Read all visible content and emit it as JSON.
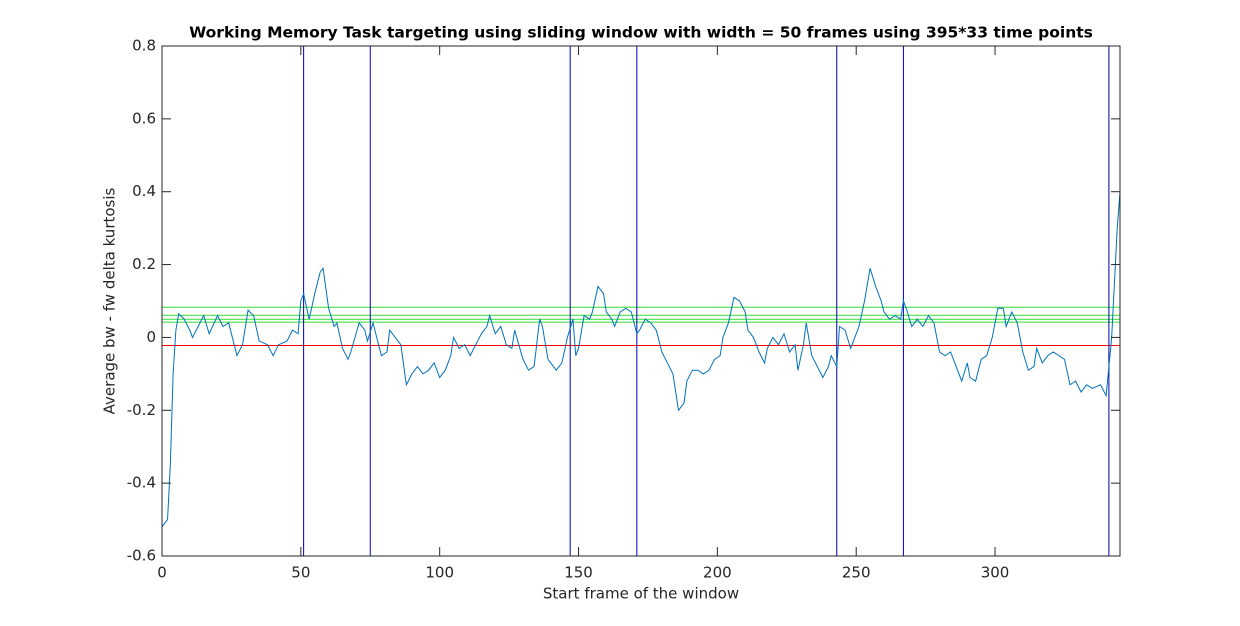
{
  "chart_data": {
    "type": "line",
    "title": "Working Memory Task targeting using sliding window with width = 50 frames using 395*33 time points",
    "xlabel": "Start frame of the window",
    "ylabel": "Average bw - fw delta kurtosis",
    "xlim": [
      0,
      345
    ],
    "ylim": [
      -0.6,
      0.8
    ],
    "xticks": [
      0,
      50,
      100,
      150,
      200,
      250,
      300
    ],
    "yticks": [
      -0.6,
      -0.4,
      -0.2,
      0,
      0.2,
      0.4,
      0.6,
      0.8
    ],
    "series": [
      {
        "color": "#0072bd",
        "x": [
          0,
          2,
          3,
          4,
          5,
          6,
          8,
          10,
          11,
          13,
          15,
          17,
          20,
          22,
          24,
          27,
          29,
          31,
          33,
          35,
          38,
          40,
          42,
          45,
          47,
          49,
          50,
          51,
          53,
          55,
          57,
          58,
          60,
          62,
          63,
          65,
          67,
          68,
          71,
          73,
          74,
          76,
          77,
          79,
          81,
          82,
          84,
          86,
          88,
          90,
          92,
          94,
          96,
          98,
          100,
          102,
          104,
          105,
          107,
          109,
          111,
          113,
          115,
          117,
          118,
          120,
          122,
          124,
          126,
          127,
          130,
          132,
          134,
          136,
          137,
          139,
          142,
          144,
          146,
          148,
          149,
          150,
          152,
          154,
          155,
          157,
          159,
          160,
          162,
          163,
          165,
          167,
          169,
          171,
          172,
          174,
          176,
          178,
          180,
          182,
          184,
          186,
          188,
          189,
          191,
          193,
          195,
          197,
          199,
          201,
          202,
          204,
          206,
          208,
          210,
          211,
          213,
          215,
          217,
          218,
          220,
          222,
          224,
          226,
          228,
          229,
          231,
          232,
          234,
          236,
          238,
          240,
          241,
          243,
          244,
          246,
          248,
          250,
          251,
          253,
          255,
          257,
          259,
          260,
          262,
          264,
          266,
          267,
          268,
          270,
          272,
          274,
          276,
          278,
          280,
          282,
          284,
          286,
          288,
          290,
          291,
          293,
          295,
          297,
          299,
          301,
          303,
          304,
          306,
          308,
          310,
          312,
          314,
          315,
          317,
          319,
          321,
          323,
          325,
          327,
          329,
          331,
          333,
          335,
          338,
          340,
          342,
          343,
          344,
          345
        ],
        "values": [
          -0.52,
          -0.5,
          -0.35,
          -0.1,
          0.02,
          0.065,
          0.05,
          0.02,
          0.0,
          0.03,
          0.06,
          0.01,
          0.06,
          0.03,
          0.04,
          -0.05,
          -0.02,
          0.075,
          0.06,
          -0.01,
          -0.02,
          -0.05,
          -0.02,
          -0.01,
          0.02,
          0.01,
          0.1,
          0.12,
          0.05,
          0.12,
          0.18,
          0.19,
          0.08,
          0.03,
          0.04,
          -0.03,
          -0.06,
          -0.04,
          0.04,
          0.02,
          -0.01,
          0.04,
          0.01,
          -0.05,
          -0.04,
          0.02,
          0.0,
          -0.02,
          -0.13,
          -0.1,
          -0.08,
          -0.1,
          -0.09,
          -0.07,
          -0.11,
          -0.09,
          -0.05,
          0.0,
          -0.03,
          -0.02,
          -0.05,
          -0.02,
          0.01,
          0.03,
          0.06,
          0.01,
          0.03,
          -0.02,
          -0.03,
          0.02,
          -0.06,
          -0.09,
          -0.08,
          0.05,
          0.03,
          -0.06,
          -0.09,
          -0.07,
          0.0,
          0.05,
          -0.05,
          -0.03,
          0.06,
          0.05,
          0.07,
          0.14,
          0.12,
          0.07,
          0.05,
          0.03,
          0.07,
          0.08,
          0.07,
          0.01,
          0.02,
          0.05,
          0.04,
          0.02,
          -0.04,
          -0.07,
          -0.1,
          -0.2,
          -0.18,
          -0.12,
          -0.09,
          -0.09,
          -0.1,
          -0.09,
          -0.06,
          -0.05,
          0.0,
          0.04,
          0.11,
          0.1,
          0.07,
          0.02,
          0.0,
          -0.04,
          -0.07,
          -0.03,
          0.0,
          -0.02,
          0.01,
          -0.04,
          -0.02,
          -0.09,
          -0.02,
          0.04,
          -0.05,
          -0.08,
          -0.11,
          -0.08,
          -0.05,
          -0.08,
          0.03,
          0.02,
          -0.03,
          0.01,
          0.03,
          0.1,
          0.19,
          0.14,
          0.1,
          0.07,
          0.05,
          0.06,
          0.05,
          0.1,
          0.08,
          0.03,
          0.05,
          0.03,
          0.06,
          0.04,
          -0.04,
          -0.05,
          -0.04,
          -0.08,
          -0.12,
          -0.07,
          -0.11,
          -0.12,
          -0.06,
          -0.05,
          0.0,
          0.08,
          0.08,
          0.03,
          0.07,
          0.04,
          -0.04,
          -0.09,
          -0.08,
          -0.03,
          -0.07,
          -0.05,
          -0.04,
          -0.05,
          -0.06,
          -0.13,
          -0.12,
          -0.15,
          -0.13,
          -0.14,
          -0.13,
          -0.16,
          0.0,
          0.15,
          0.3,
          0.4
        ]
      }
    ],
    "vlines": {
      "color": "#0000b4",
      "values": [
        51,
        75,
        147,
        171,
        243,
        267,
        341
      ]
    },
    "hlines": [
      {
        "value": -0.022,
        "color": "#ff0000"
      },
      {
        "value": 0.083,
        "color": "#33dd33"
      },
      {
        "value": 0.061,
        "color": "#33dd33"
      },
      {
        "value": 0.05,
        "color": "#33dd33"
      },
      {
        "value": 0.042,
        "color": "#33dd33"
      }
    ]
  }
}
